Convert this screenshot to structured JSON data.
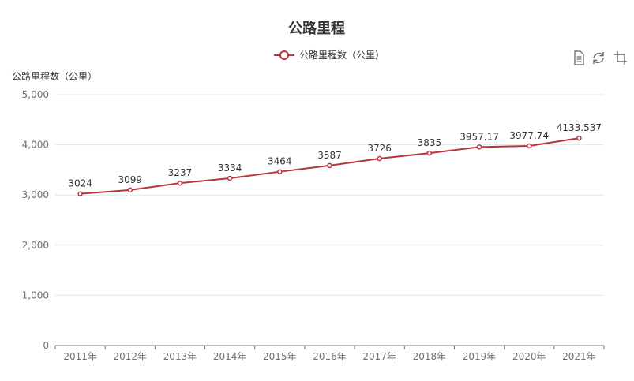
{
  "chart_data": {
    "type": "line",
    "title": "公路里程",
    "ylabel": "公路里程数（公里）",
    "xlabel": "",
    "categories": [
      "2011年",
      "2012年",
      "2013年",
      "2014年",
      "2015年",
      "2016年",
      "2017年",
      "2018年",
      "2019年",
      "2020年",
      "2021年"
    ],
    "series": [
      {
        "name": "公路里程数（公里）",
        "values": [
          3024,
          3099,
          3237,
          3334,
          3464,
          3587,
          3726,
          3835,
          3957.17,
          3977.74,
          4133.537
        ],
        "color": "#b8353a"
      }
    ],
    "data_labels": [
      "3024",
      "3099",
      "3237",
      "3334",
      "3464",
      "3587",
      "3726",
      "3835",
      "3957.17",
      "3977.74",
      "4133.537"
    ],
    "ylim": [
      0,
      5000
    ],
    "yticks": [
      "0",
      "1,000",
      "2,000",
      "3,000",
      "4,000",
      "5,000"
    ],
    "grid": true,
    "legend_position": "top-center"
  },
  "toolbox": {
    "icons": [
      "data-view-icon",
      "restore-icon",
      "save-image-icon"
    ]
  }
}
